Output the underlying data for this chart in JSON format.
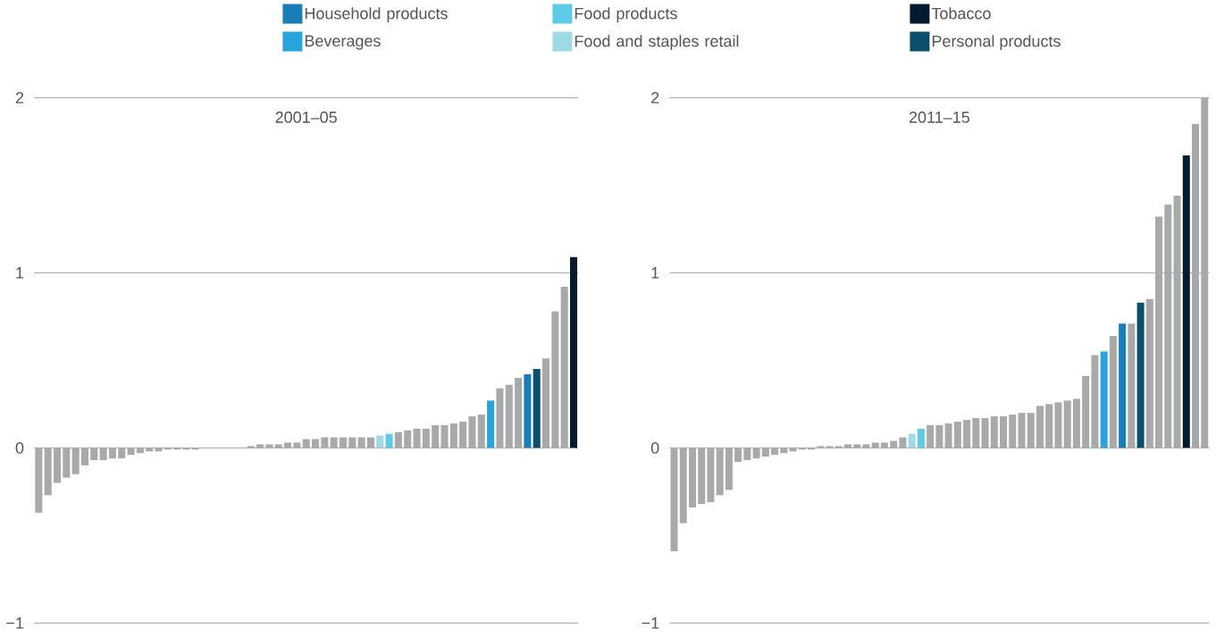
{
  "chart_data": [
    {
      "type": "bar",
      "title": "2001–05",
      "categories": [
        null,
        null,
        null,
        null,
        null,
        null,
        null,
        null,
        null,
        null,
        null,
        null,
        null,
        null,
        null,
        null,
        null,
        null,
        null,
        null,
        null,
        null,
        null,
        null,
        null,
        null,
        null,
        null,
        null,
        null,
        null,
        null,
        null,
        null,
        null,
        null,
        null,
        null,
        null,
        null,
        null,
        null,
        null,
        null,
        null,
        null,
        null,
        null,
        null,
        null,
        null,
        null,
        null,
        null,
        null,
        null,
        null,
        null,
        null
      ],
      "ylim": [
        -1,
        2
      ],
      "yticks": [
        {
          "value": -1,
          "label": "−1"
        },
        0,
        1,
        2
      ],
      "grid": "y",
      "tick_labels": "y",
      "legend": "top",
      "series": [
        {
          "name": "Household products",
          "color": "#1a7db5",
          "values": [
            null,
            null,
            null,
            null,
            null,
            null,
            null,
            null,
            null,
            null,
            null,
            null,
            null,
            null,
            null,
            null,
            null,
            null,
            null,
            null,
            null,
            null,
            null,
            null,
            null,
            null,
            null,
            null,
            null,
            null,
            null,
            null,
            null,
            null,
            null,
            null,
            null,
            null,
            null,
            null,
            null,
            null,
            null,
            null,
            null,
            null,
            null,
            null,
            null,
            null,
            null,
            null,
            null,
            0.42,
            null,
            null,
            null,
            null,
            null
          ]
        },
        {
          "name": "Food products",
          "color": "#5dcbe8",
          "values": [
            null,
            null,
            null,
            null,
            null,
            null,
            null,
            null,
            null,
            null,
            null,
            null,
            null,
            null,
            null,
            null,
            null,
            null,
            null,
            null,
            null,
            null,
            null,
            null,
            null,
            null,
            null,
            null,
            null,
            null,
            null,
            null,
            null,
            null,
            null,
            null,
            null,
            null,
            0.08,
            null,
            null,
            null,
            null,
            null,
            null,
            null,
            null,
            null,
            null,
            null,
            null,
            null,
            null,
            null,
            null,
            null,
            null,
            null,
            null
          ]
        },
        {
          "name": "Tobacco",
          "color": "#051a2e",
          "values": [
            null,
            null,
            null,
            null,
            null,
            null,
            null,
            null,
            null,
            null,
            null,
            null,
            null,
            null,
            null,
            null,
            null,
            null,
            null,
            null,
            null,
            null,
            null,
            null,
            null,
            null,
            null,
            null,
            null,
            null,
            null,
            null,
            null,
            null,
            null,
            null,
            null,
            null,
            null,
            null,
            null,
            null,
            null,
            null,
            null,
            null,
            null,
            null,
            null,
            null,
            null,
            null,
            null,
            null,
            null,
            null,
            null,
            null,
            1.09
          ]
        },
        {
          "name": "Beverages",
          "color": "#27a3dd",
          "values": [
            null,
            null,
            null,
            null,
            null,
            null,
            null,
            null,
            null,
            null,
            null,
            null,
            null,
            null,
            null,
            null,
            null,
            null,
            null,
            null,
            null,
            null,
            null,
            null,
            null,
            null,
            null,
            null,
            null,
            null,
            null,
            null,
            null,
            null,
            null,
            null,
            null,
            null,
            null,
            null,
            null,
            null,
            null,
            null,
            null,
            null,
            null,
            null,
            null,
            0.27,
            null,
            null,
            null,
            null,
            null,
            null,
            null,
            null,
            null
          ]
        },
        {
          "name": "Food and staples retail",
          "color": "#9fd9e5",
          "values": [
            null,
            null,
            null,
            null,
            null,
            null,
            null,
            null,
            null,
            null,
            null,
            null,
            null,
            null,
            null,
            null,
            null,
            null,
            null,
            null,
            null,
            null,
            null,
            null,
            null,
            null,
            null,
            null,
            null,
            null,
            null,
            null,
            null,
            null,
            null,
            null,
            null,
            0.07,
            null,
            null,
            null,
            null,
            null,
            null,
            null,
            null,
            null,
            null,
            null,
            null,
            null,
            null,
            null,
            null,
            null,
            null,
            null,
            null,
            null
          ]
        },
        {
          "name": "Personal products",
          "color": "#0b4f6c",
          "values": [
            null,
            null,
            null,
            null,
            null,
            null,
            null,
            null,
            null,
            null,
            null,
            null,
            null,
            null,
            null,
            null,
            null,
            null,
            null,
            null,
            null,
            null,
            null,
            null,
            null,
            null,
            null,
            null,
            null,
            null,
            null,
            null,
            null,
            null,
            null,
            null,
            null,
            null,
            null,
            null,
            null,
            null,
            null,
            null,
            null,
            null,
            null,
            null,
            null,
            null,
            null,
            null,
            null,
            null,
            0.45,
            null,
            null,
            null,
            null
          ]
        },
        {
          "color": "#a7a9aa",
          "values": [
            -0.37,
            -0.27,
            -0.2,
            -0.17,
            -0.15,
            -0.1,
            -0.07,
            -0.07,
            -0.06,
            -0.06,
            -0.04,
            -0.03,
            -0.02,
            -0.02,
            -0.01,
            -0.01,
            -0.01,
            -0.01,
            0,
            0,
            0,
            0,
            0,
            0.01,
            0.02,
            0.02,
            0.02,
            0.03,
            0.03,
            0.05,
            0.05,
            0.06,
            0.06,
            0.06,
            0.06,
            0.06,
            0.06,
            null,
            null,
            0.09,
            0.1,
            0.11,
            0.11,
            0.13,
            0.13,
            0.14,
            0.15,
            0.18,
            0.19,
            null,
            0.34,
            0.36,
            0.4,
            null,
            null,
            0.51,
            0.78,
            0.92,
            null
          ]
        }
      ]
    },
    {
      "type": "bar",
      "title": "2011–15",
      "categories": [
        null,
        null,
        null,
        null,
        null,
        null,
        null,
        null,
        null,
        null,
        null,
        null,
        null,
        null,
        null,
        null,
        null,
        null,
        null,
        null,
        null,
        null,
        null,
        null,
        null,
        null,
        null,
        null,
        null,
        null,
        null,
        null,
        null,
        null,
        null,
        null,
        null,
        null,
        null,
        null,
        null,
        null,
        null,
        null,
        null,
        null,
        null,
        null,
        null,
        null,
        null,
        null,
        null,
        null,
        null,
        null,
        null,
        null,
        null
      ],
      "ylim": [
        -1,
        2
      ],
      "yticks": [
        {
          "value": -1,
          "label": "−1"
        },
        0,
        1,
        2
      ],
      "grid": "y",
      "tick_labels": "y",
      "series": [
        {
          "color": "#1a7db5",
          "values": [
            null,
            null,
            null,
            null,
            null,
            null,
            null,
            null,
            null,
            null,
            null,
            null,
            null,
            null,
            null,
            null,
            null,
            null,
            null,
            null,
            null,
            null,
            null,
            null,
            null,
            null,
            null,
            null,
            null,
            null,
            null,
            null,
            null,
            null,
            null,
            null,
            null,
            null,
            null,
            null,
            null,
            null,
            null,
            null,
            null,
            null,
            null,
            null,
            null,
            0.71,
            null,
            null,
            null,
            null,
            null,
            null,
            null,
            null,
            null
          ]
        },
        {
          "color": "#5dcbe8",
          "values": [
            null,
            null,
            null,
            null,
            null,
            null,
            null,
            null,
            null,
            null,
            null,
            null,
            null,
            null,
            null,
            null,
            null,
            null,
            null,
            null,
            null,
            null,
            null,
            null,
            null,
            null,
            null,
            0.11,
            null,
            null,
            null,
            null,
            null,
            null,
            null,
            null,
            null,
            null,
            null,
            null,
            null,
            null,
            null,
            null,
            null,
            null,
            null,
            null,
            null,
            null,
            null,
            null,
            null,
            null,
            null,
            null,
            null,
            null,
            null
          ]
        },
        {
          "color": "#051a2e",
          "values": [
            null,
            null,
            null,
            null,
            null,
            null,
            null,
            null,
            null,
            null,
            null,
            null,
            null,
            null,
            null,
            null,
            null,
            null,
            null,
            null,
            null,
            null,
            null,
            null,
            null,
            null,
            null,
            null,
            null,
            null,
            null,
            null,
            null,
            null,
            null,
            null,
            null,
            null,
            null,
            null,
            null,
            null,
            null,
            null,
            null,
            null,
            null,
            null,
            null,
            null,
            null,
            null,
            null,
            null,
            null,
            null,
            1.67,
            null,
            null
          ]
        },
        {
          "color": "#27a3dd",
          "values": [
            null,
            null,
            null,
            null,
            null,
            null,
            null,
            null,
            null,
            null,
            null,
            null,
            null,
            null,
            null,
            null,
            null,
            null,
            null,
            null,
            null,
            null,
            null,
            null,
            null,
            null,
            null,
            null,
            null,
            null,
            null,
            null,
            null,
            null,
            null,
            null,
            null,
            null,
            null,
            null,
            null,
            null,
            null,
            null,
            null,
            null,
            null,
            0.55,
            null,
            null,
            null,
            null,
            null,
            null,
            null,
            null,
            null,
            null,
            null
          ]
        },
        {
          "color": "#9fd9e5",
          "values": [
            null,
            null,
            null,
            null,
            null,
            null,
            null,
            null,
            null,
            null,
            null,
            null,
            null,
            null,
            null,
            null,
            null,
            null,
            null,
            null,
            null,
            null,
            null,
            null,
            null,
            null,
            0.08,
            null,
            null,
            null,
            null,
            null,
            null,
            null,
            null,
            null,
            null,
            null,
            null,
            null,
            null,
            null,
            null,
            null,
            null,
            null,
            null,
            null,
            null,
            null,
            null,
            null,
            null,
            null,
            null,
            null,
            null,
            null,
            null
          ]
        },
        {
          "color": "#0b4f6c",
          "values": [
            null,
            null,
            null,
            null,
            null,
            null,
            null,
            null,
            null,
            null,
            null,
            null,
            null,
            null,
            null,
            null,
            null,
            null,
            null,
            null,
            null,
            null,
            null,
            null,
            null,
            null,
            null,
            null,
            null,
            null,
            null,
            null,
            null,
            null,
            null,
            null,
            null,
            null,
            null,
            null,
            null,
            null,
            null,
            null,
            null,
            null,
            null,
            null,
            null,
            null,
            null,
            0.83,
            null,
            null,
            null,
            null,
            null,
            null,
            null
          ]
        },
        {
          "color": "#a7a9aa",
          "values": [
            -0.59,
            -0.43,
            -0.34,
            -0.32,
            -0.31,
            -0.27,
            -0.24,
            -0.08,
            -0.07,
            -0.06,
            -0.05,
            -0.04,
            -0.03,
            -0.02,
            -0.01,
            -0.01,
            0.01,
            0.01,
            0.01,
            0.02,
            0.02,
            0.02,
            0.03,
            0.03,
            0.04,
            0.06,
            null,
            null,
            0.13,
            0.13,
            0.14,
            0.15,
            0.16,
            0.17,
            0.17,
            0.18,
            0.18,
            0.19,
            0.2,
            0.2,
            0.24,
            0.25,
            0.26,
            0.27,
            0.28,
            0.41,
            0.53,
            null,
            0.64,
            null,
            0.71,
            null,
            0.85,
            1.32,
            1.39,
            1.44,
            null,
            1.85,
            2.0
          ]
        }
      ]
    }
  ]
}
